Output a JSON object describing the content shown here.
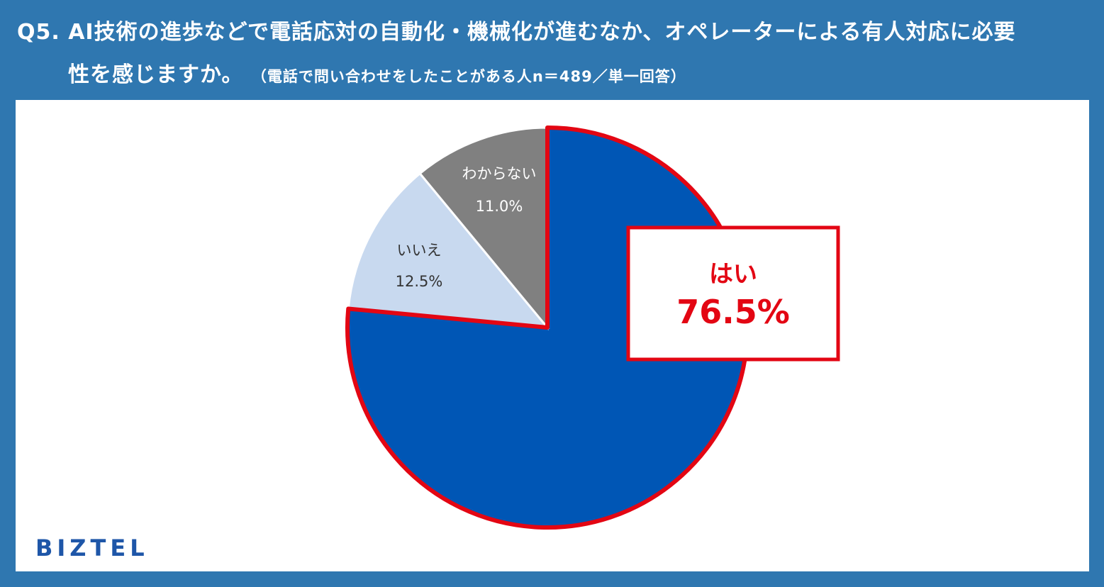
{
  "header": {
    "line1": "Q5. AI技術の進歩などで電話応対の自動化・機械化が進むなか、オペレーターによる有人対応に必要",
    "line2": "性を感じますか。",
    "subtitle": "（電話で問い合わせをしたことがある人n＝489／単一回答）"
  },
  "brand": {
    "logo_text": "BIZTEL"
  },
  "colors": {
    "background": "#2f77b0",
    "yes": "#0056b5",
    "no": "#c8d9ef",
    "unknown": "#808080",
    "highlight": "#e30613"
  },
  "chart_data": {
    "type": "pie",
    "slices": [
      {
        "label": "はい",
        "value": 76.5,
        "display": "76.5%"
      },
      {
        "label": "いいえ",
        "value": 12.5,
        "display": "12.5%"
      },
      {
        "label": "わからない",
        "value": 11.0,
        "display": "11.0%"
      }
    ],
    "start": "12 o'clock",
    "direction": "clockwise",
    "highlight": "はい"
  }
}
